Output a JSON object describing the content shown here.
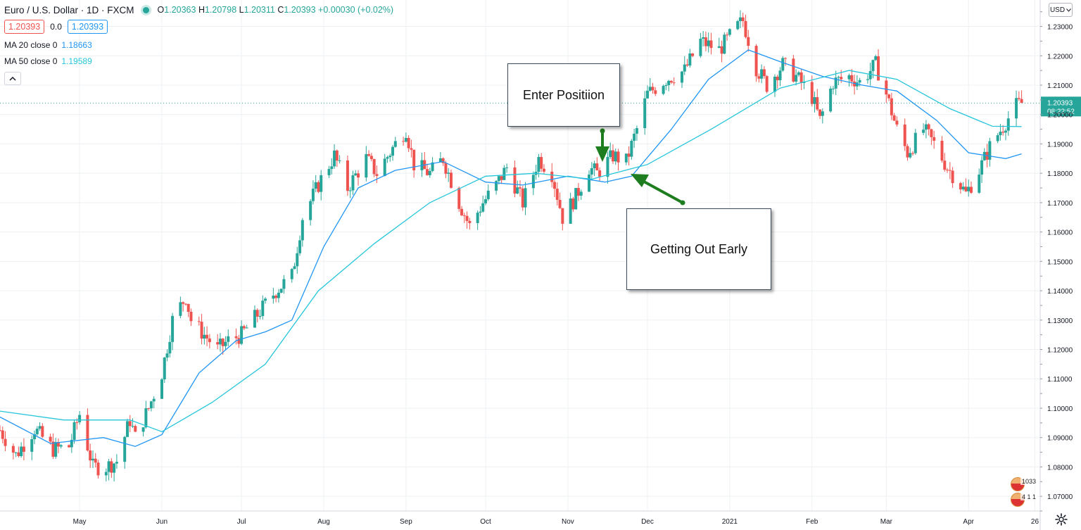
{
  "header": {
    "title": "Euro / U.S. Dollar · 1D · FXCM",
    "ohlc": {
      "open_label": "O",
      "open": "1.20363",
      "high_label": "H",
      "high": "1.20798",
      "low_label": "L",
      "low": "1.20311",
      "close_label": "C",
      "close": "1.20393",
      "change": "+0.00030 (+0.02%)"
    },
    "sell_price": "1.20393",
    "spread": "0.0",
    "buy_price": "1.20393",
    "collapse_icon": "chevron-up-icon"
  },
  "indicators": [
    {
      "label": "MA 20 close 0",
      "value": "1.18663",
      "color": "#2196f3"
    },
    {
      "label": "MA 50 close 0",
      "value": "1.19589",
      "color": "#26c6da"
    }
  ],
  "currency_button": "USD",
  "price_label": {
    "price": "1.20393",
    "countdown": "08:22:52",
    "color": "#26a69a"
  },
  "annotations": {
    "enter": "Enter Positiion",
    "exit": "Getting Out Early",
    "arrow_color": "#1e7d1e"
  },
  "badges": [
    {
      "text": "1033"
    },
    {
      "text": "4 1 1"
    }
  ],
  "settings_icon": "gear-icon",
  "chart_data": {
    "type": "candlestick",
    "symbol": "EUR/USD",
    "timeframe": "1D",
    "y_axis_ticks": [
      1.07,
      1.08,
      1.09,
      1.1,
      1.11,
      1.12,
      1.13,
      1.14,
      1.15,
      1.16,
      1.17,
      1.18,
      1.19,
      1.2,
      1.21,
      1.22,
      1.23
    ],
    "y_axis_tick_labels": [
      "1.07000",
      "1.08000",
      "1.09000",
      "1.10000",
      "1.11000",
      "1.12000",
      "1.13000",
      "1.14000",
      "1.15000",
      "1.16000",
      "1.17000",
      "1.18000",
      "1.19000",
      "1.20000",
      "1.21000",
      "1.22000",
      "1.23000"
    ],
    "y_range": [
      1.065,
      1.239
    ],
    "x_axis_labels": [
      {
        "label": "May",
        "date": "2020-05-01"
      },
      {
        "label": "Jun",
        "date": "2020-06-01"
      },
      {
        "label": "Jul",
        "date": "2020-07-01"
      },
      {
        "label": "Aug",
        "date": "2020-08-01"
      },
      {
        "label": "Sep",
        "date": "2020-09-01"
      },
      {
        "label": "Oct",
        "date": "2020-10-01"
      },
      {
        "label": "Nov",
        "date": "2020-11-01"
      },
      {
        "label": "Dec",
        "date": "2020-12-01"
      },
      {
        "label": "2021",
        "date": "2021-01-01"
      },
      {
        "label": "Feb",
        "date": "2021-02-01"
      },
      {
        "label": "Mar",
        "date": "2021-03-01"
      },
      {
        "label": "Apr",
        "date": "2021-04-01"
      },
      {
        "label": "26",
        "date": "2021-04-26"
      }
    ],
    "x_range": [
      "2020-04-01",
      "2021-04-28"
    ],
    "grid": true,
    "up_color": "#26a69a",
    "down_color": "#ef5350",
    "close_path": [
      [
        "2020-04-01",
        1.0925
      ],
      [
        "2020-04-07",
        1.084
      ],
      [
        "2020-04-14",
        1.093
      ],
      [
        "2020-04-21",
        1.086
      ],
      [
        "2020-04-27",
        1.087
      ],
      [
        "2020-05-01",
        1.098
      ],
      [
        "2020-05-06",
        1.08
      ],
      [
        "2020-05-11",
        1.08
      ],
      [
        "2020-05-15",
        1.082
      ],
      [
        "2020-05-20",
        1.096
      ],
      [
        "2020-05-22",
        1.09
      ],
      [
        "2020-05-27",
        1.1
      ],
      [
        "2020-06-01",
        1.112
      ],
      [
        "2020-06-05",
        1.13
      ],
      [
        "2020-06-10",
        1.138
      ],
      [
        "2020-06-12",
        1.13
      ],
      [
        "2020-06-17",
        1.125
      ],
      [
        "2020-06-22",
        1.12
      ],
      [
        "2020-06-26",
        1.123
      ],
      [
        "2020-07-01",
        1.125
      ],
      [
        "2020-07-08",
        1.133
      ],
      [
        "2020-07-14",
        1.14
      ],
      [
        "2020-07-20",
        1.145
      ],
      [
        "2020-07-24",
        1.165
      ],
      [
        "2020-07-31",
        1.178
      ],
      [
        "2020-08-05",
        1.186
      ],
      [
        "2020-08-10",
        1.175
      ],
      [
        "2020-08-17",
        1.185
      ],
      [
        "2020-08-21",
        1.18
      ],
      [
        "2020-08-28",
        1.19
      ],
      [
        "2020-09-01",
        1.195
      ],
      [
        "2020-09-04",
        1.183
      ],
      [
        "2020-09-10",
        1.18
      ],
      [
        "2020-09-15",
        1.185
      ],
      [
        "2020-09-21",
        1.17
      ],
      [
        "2020-09-25",
        1.162
      ],
      [
        "2020-09-30",
        1.17
      ],
      [
        "2020-10-05",
        1.176
      ],
      [
        "2020-10-09",
        1.182
      ],
      [
        "2020-10-15",
        1.17
      ],
      [
        "2020-10-21",
        1.185
      ],
      [
        "2020-10-26",
        1.18
      ],
      [
        "2020-10-30",
        1.165
      ],
      [
        "2020-11-04",
        1.172
      ],
      [
        "2020-11-09",
        1.182
      ],
      [
        "2020-11-12",
        1.18
      ],
      [
        "2020-11-18",
        1.186
      ],
      [
        "2020-11-23",
        1.184
      ],
      [
        "2020-11-27",
        1.195
      ],
      [
        "2020-12-01",
        1.207
      ],
      [
        "2020-12-08",
        1.212
      ],
      [
        "2020-12-15",
        1.215
      ],
      [
        "2020-12-21",
        1.225
      ],
      [
        "2020-12-28",
        1.222
      ],
      [
        "2021-01-04",
        1.23
      ],
      [
        "2021-01-06",
        1.232
      ],
      [
        "2021-01-11",
        1.216
      ],
      [
        "2021-01-15",
        1.21
      ],
      [
        "2021-01-21",
        1.217
      ],
      [
        "2021-01-26",
        1.213
      ],
      [
        "2021-02-01",
        1.206
      ],
      [
        "2021-02-04",
        1.198
      ],
      [
        "2021-02-09",
        1.211
      ],
      [
        "2021-02-15",
        1.213
      ],
      [
        "2021-02-19",
        1.211
      ],
      [
        "2021-02-25",
        1.217
      ],
      [
        "2021-03-01",
        1.207
      ],
      [
        "2021-03-05",
        1.195
      ],
      [
        "2021-03-09",
        1.187
      ],
      [
        "2021-03-15",
        1.195
      ],
      [
        "2021-03-19",
        1.19
      ],
      [
        "2021-03-24",
        1.182
      ],
      [
        "2021-03-29",
        1.176
      ],
      [
        "2021-03-31",
        1.173
      ],
      [
        "2021-04-05",
        1.181
      ],
      [
        "2021-04-09",
        1.189
      ],
      [
        "2021-04-14",
        1.196
      ],
      [
        "2021-04-19",
        1.203
      ],
      [
        "2021-04-21",
        1.2039
      ]
    ],
    "series": [
      {
        "name": "MA 20 close 0",
        "color": "#2196f3",
        "points": [
          [
            "2020-04-01",
            1.097
          ],
          [
            "2020-04-20",
            1.088
          ],
          [
            "2020-05-10",
            1.09
          ],
          [
            "2020-05-22",
            1.087
          ],
          [
            "2020-06-01",
            1.091
          ],
          [
            "2020-06-15",
            1.112
          ],
          [
            "2020-06-29",
            1.123
          ],
          [
            "2020-07-10",
            1.126
          ],
          [
            "2020-07-20",
            1.13
          ],
          [
            "2020-08-01",
            1.155
          ],
          [
            "2020-08-14",
            1.175
          ],
          [
            "2020-08-28",
            1.181
          ],
          [
            "2020-09-15",
            1.184
          ],
          [
            "2020-10-01",
            1.177
          ],
          [
            "2020-10-15",
            1.176
          ],
          [
            "2020-11-01",
            1.179
          ],
          [
            "2020-11-15",
            1.177
          ],
          [
            "2020-11-25",
            1.179
          ],
          [
            "2020-12-10",
            1.195
          ],
          [
            "2020-12-24",
            1.212
          ],
          [
            "2021-01-08",
            1.222
          ],
          [
            "2021-01-20",
            1.218
          ],
          [
            "2021-02-05",
            1.213
          ],
          [
            "2021-02-20",
            1.21
          ],
          [
            "2021-03-05",
            1.208
          ],
          [
            "2021-03-20",
            1.198
          ],
          [
            "2021-04-01",
            1.187
          ],
          [
            "2021-04-15",
            1.185
          ],
          [
            "2021-04-21",
            1.1866
          ]
        ]
      },
      {
        "name": "MA 50 close 0",
        "color": "#26c6da",
        "points": [
          [
            "2020-04-01",
            1.099
          ],
          [
            "2020-04-25",
            1.096
          ],
          [
            "2020-05-20",
            1.096
          ],
          [
            "2020-06-01",
            1.092
          ],
          [
            "2020-06-20",
            1.102
          ],
          [
            "2020-07-10",
            1.115
          ],
          [
            "2020-07-30",
            1.14
          ],
          [
            "2020-08-20",
            1.156
          ],
          [
            "2020-09-10",
            1.17
          ],
          [
            "2020-10-01",
            1.179
          ],
          [
            "2020-10-20",
            1.18
          ],
          [
            "2020-11-10",
            1.178
          ],
          [
            "2020-12-01",
            1.183
          ],
          [
            "2020-12-25",
            1.195
          ],
          [
            "2021-01-20",
            1.209
          ],
          [
            "2021-02-15",
            1.215
          ],
          [
            "2021-03-05",
            1.212
          ],
          [
            "2021-03-25",
            1.202
          ],
          [
            "2021-04-10",
            1.196
          ],
          [
            "2021-04-21",
            1.1959
          ]
        ]
      }
    ]
  }
}
